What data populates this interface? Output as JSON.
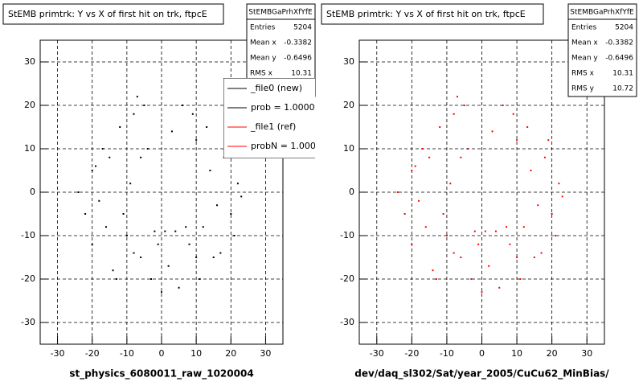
{
  "chart_data": [
    {
      "type": "scatter",
      "title": "StEMB primtrk: Y vs X of first hit on trk, ftpcE",
      "x_label": "st_physics_6080011_raw_1020004",
      "color": "#000000",
      "stats": {
        "header": "StEMBGaPrhXfYfE",
        "rows": [
          {
            "label": "Entries",
            "value": 5204
          },
          {
            "label": "Mean x",
            "value": -0.3382
          },
          {
            "label": "Mean y",
            "value": -0.6496
          },
          {
            "label": "RMS x",
            "value": 10.31
          },
          {
            "label": "RMS y",
            "value": 10.72
          }
        ]
      },
      "legend": [
        {
          "label": "_file0 (new)",
          "color": "#000000"
        },
        {
          "label": "prob = 1.000000",
          "color": "#000000"
        },
        {
          "label": "_file1 (ref)",
          "color": "#ff0000"
        },
        {
          "label": "probN = 1.000000",
          "color": "#ff0000"
        }
      ],
      "x": [
        -12,
        -8,
        -15,
        -20,
        -5,
        3,
        10,
        14,
        18,
        -18,
        -22,
        -10,
        -6,
        8,
        12,
        20,
        22,
        -14,
        -3,
        5,
        15,
        -9,
        -17,
        7,
        -1,
        2,
        11,
        -24,
        -20,
        17,
        13,
        -7,
        -11,
        4,
        9,
        -4,
        0,
        6,
        19,
        -16,
        -13,
        16,
        -2,
        10,
        -19,
        21,
        23,
        -8,
        1,
        -6
      ],
      "y": [
        15,
        18,
        8,
        5,
        20,
        14,
        12,
        5,
        8,
        -2,
        -5,
        -10,
        -15,
        -12,
        -8,
        -5,
        2,
        -18,
        -20,
        -22,
        -15,
        2,
        10,
        -8,
        -12,
        -17,
        -20,
        0,
        -12,
        -14,
        15,
        22,
        -5,
        -9,
        18,
        10,
        -23,
        20,
        12,
        -8,
        -20,
        -3,
        -9,
        -15,
        6,
        -10,
        -1,
        -14,
        -9,
        8
      ],
      "xlim": [
        -35,
        35
      ],
      "ylim": [
        -35,
        35
      ],
      "xticks": [
        -30,
        -20,
        -10,
        0,
        10,
        20,
        30
      ],
      "yticks": [
        -30,
        -20,
        -10,
        0,
        10,
        20,
        30
      ],
      "grid": true
    },
    {
      "type": "scatter",
      "title": "StEMB primtrk: Y vs X of first hit on trk, ftpcE",
      "x_label": "dev/daq_sl302/Sat/year_2005/CuCu62_MinBias/",
      "color": "#ff0000",
      "stats": {
        "header": "StEMBGaPrhXfYfE",
        "rows": [
          {
            "label": "Entries",
            "value": 5204
          },
          {
            "label": "Mean x",
            "value": -0.3382
          },
          {
            "label": "Mean y",
            "value": -0.6496
          },
          {
            "label": "RMS x",
            "value": 10.31
          },
          {
            "label": "RMS y",
            "value": 10.72
          }
        ]
      },
      "x": [
        -12,
        -8,
        -15,
        -20,
        -5,
        3,
        10,
        14,
        18,
        -18,
        -22,
        -10,
        -6,
        8,
        12,
        20,
        22,
        -14,
        -3,
        5,
        15,
        -9,
        -17,
        7,
        -1,
        2,
        11,
        -24,
        -20,
        17,
        13,
        -7,
        -11,
        4,
        9,
        -4,
        0,
        6,
        19,
        -16,
        -13,
        16,
        -2,
        10,
        -19,
        21,
        23,
        -8,
        1,
        -6
      ],
      "y": [
        15,
        18,
        8,
        5,
        20,
        14,
        12,
        5,
        8,
        -2,
        -5,
        -10,
        -15,
        -12,
        -8,
        -5,
        2,
        -18,
        -20,
        -22,
        -15,
        2,
        10,
        -8,
        -12,
        -17,
        -20,
        0,
        -12,
        -14,
        15,
        22,
        -5,
        -9,
        18,
        10,
        -23,
        20,
        12,
        -8,
        -20,
        -3,
        -9,
        -15,
        6,
        -10,
        -1,
        -14,
        -9,
        8
      ],
      "xlim": [
        -35,
        35
      ],
      "ylim": [
        -35,
        35
      ],
      "xticks": [
        -30,
        -20,
        -10,
        0,
        10,
        20,
        30
      ],
      "yticks": [
        -30,
        -20,
        -10,
        0,
        10,
        20,
        30
      ],
      "grid": true
    }
  ]
}
